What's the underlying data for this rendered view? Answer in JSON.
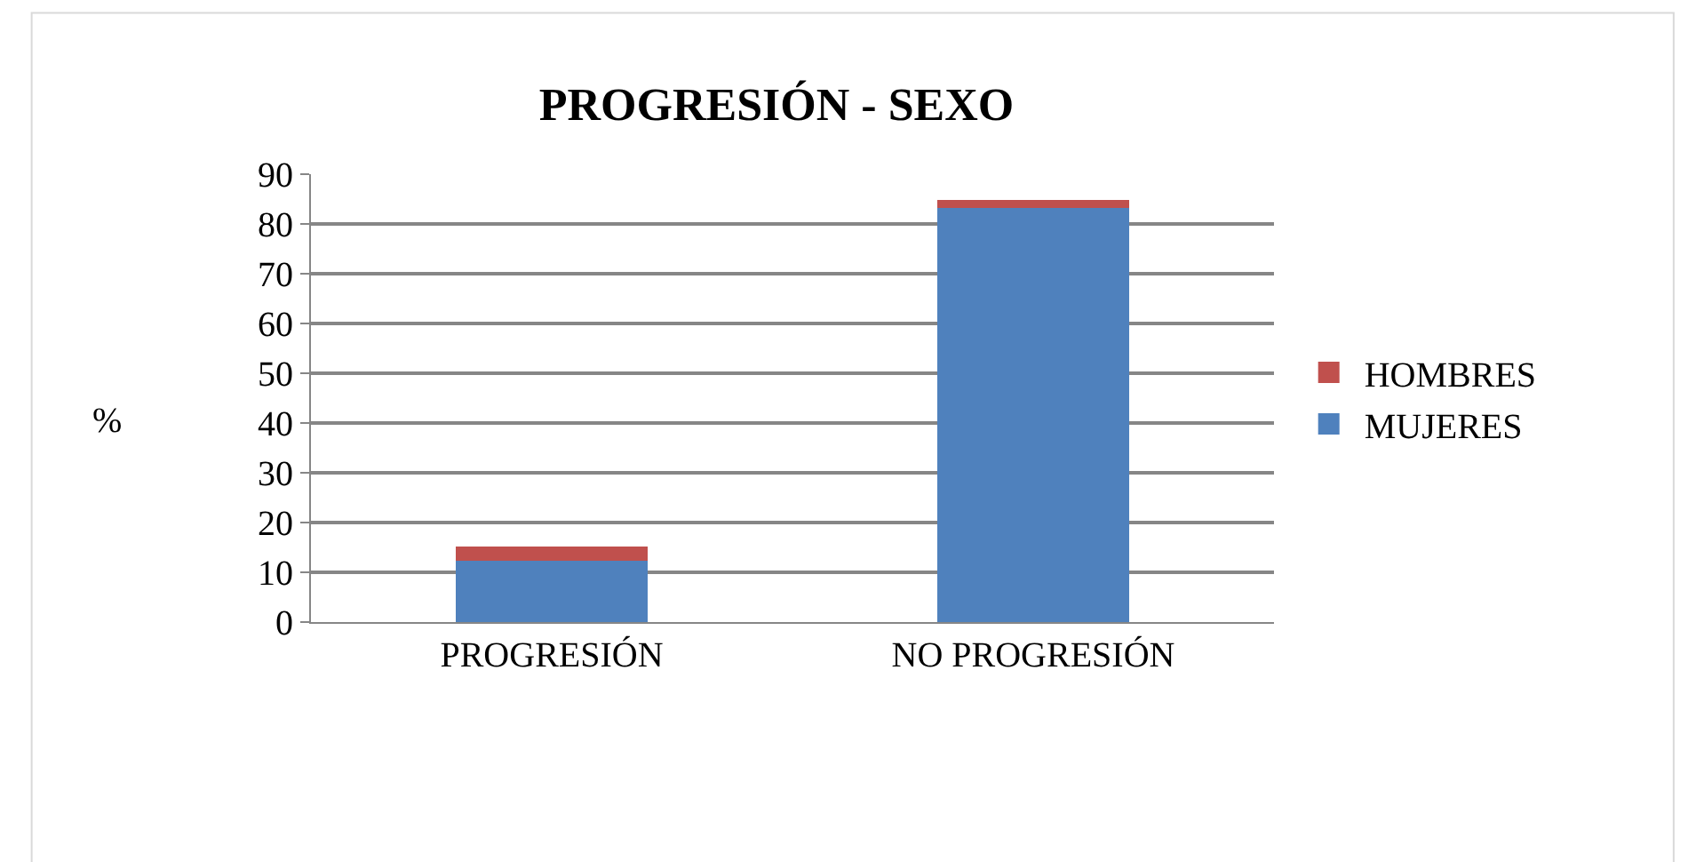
{
  "chart_data": {
    "type": "bar",
    "title": "PROGRESIÓN - SEXO",
    "ylabel": "%",
    "categories": [
      "PROGRESIÓN",
      "NO PROGRESIÓN"
    ],
    "stacked": true,
    "series": [
      {
        "name": "MUJERES",
        "color": "#4f81bd",
        "values": [
          12.3,
          83.3
        ]
      },
      {
        "name": "HOMBRES",
        "color": "#c0504d",
        "values": [
          2.8,
          1.5
        ]
      }
    ],
    "ylim": [
      0,
      90
    ],
    "yticks": [
      0,
      10,
      20,
      30,
      40,
      50,
      60,
      70,
      80,
      90
    ],
    "grid": "y",
    "legend": "right"
  }
}
